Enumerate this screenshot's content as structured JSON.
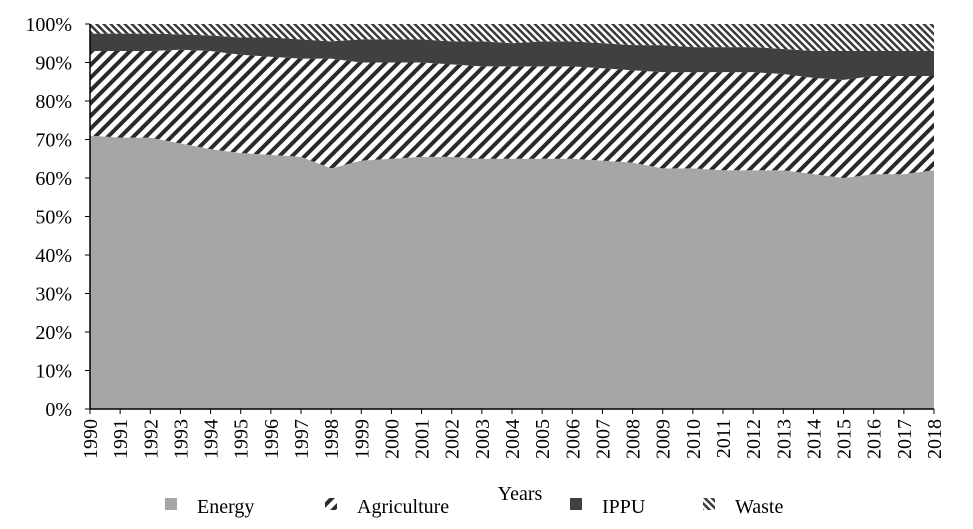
{
  "chart_data": {
    "type": "area",
    "stacked": true,
    "percent": true,
    "x": [
      "1990",
      "1991",
      "1992",
      "1993",
      "1994",
      "1995",
      "1996",
      "1997",
      "1998",
      "1999",
      "2000",
      "2001",
      "2002",
      "2003",
      "2004",
      "2005",
      "2006",
      "2007",
      "2008",
      "2009",
      "2010",
      "2011",
      "2012",
      "2013",
      "2014",
      "2015",
      "2016",
      "2017",
      "2018"
    ],
    "xlabel": "Years",
    "ylabel": "",
    "ylim": [
      0,
      100
    ],
    "yticks": [
      "0%",
      "10%",
      "20%",
      "30%",
      "40%",
      "50%",
      "60%",
      "70%",
      "80%",
      "90%",
      "100%"
    ],
    "legend_position": "bottom",
    "grid": false,
    "series": [
      {
        "name": "Energy",
        "color": "#a6a6a6",
        "pattern": "solid",
        "values": [
          71,
          70.5,
          70.5,
          69,
          67.5,
          66.5,
          66,
          65.5,
          62.5,
          64.5,
          65,
          65.5,
          65.5,
          65,
          65,
          65,
          65,
          64.5,
          64,
          62.5,
          62.5,
          62,
          62,
          62,
          61,
          60,
          61,
          61,
          62
        ]
      },
      {
        "name": "Agriculture",
        "color": "#333333",
        "pattern": "diagonal-hatch",
        "values": [
          22,
          22.5,
          22.5,
          24.3,
          25.5,
          25.5,
          25.5,
          25.5,
          28.5,
          25.5,
          25,
          24.5,
          24,
          24,
          24,
          24,
          24,
          24,
          24,
          25,
          25,
          25.5,
          25.5,
          25,
          25,
          25.5,
          25.5,
          25.5,
          24.5
        ]
      },
      {
        "name": "IPPU",
        "color": "#3f3f3f",
        "pattern": "solid",
        "values": [
          4.5,
          4.5,
          4.5,
          4,
          4,
          4.5,
          5,
          5,
          4.5,
          6,
          6,
          6,
          6,
          6.5,
          6,
          6.5,
          6.5,
          6.5,
          6.5,
          7,
          6.5,
          6.5,
          6.5,
          6.5,
          7,
          7.5,
          6.5,
          6.5,
          6.5
        ]
      },
      {
        "name": "Waste",
        "color": "#555555",
        "pattern": "dense-hatch",
        "values": [
          2.5,
          2.5,
          2.5,
          2.7,
          3,
          3.5,
          3.5,
          4,
          4.5,
          4,
          4,
          4,
          4.5,
          4.5,
          5,
          4.5,
          4.5,
          5,
          5.5,
          5.5,
          6,
          6,
          6,
          6.5,
          7,
          7,
          7,
          7,
          7
        ]
      }
    ]
  }
}
